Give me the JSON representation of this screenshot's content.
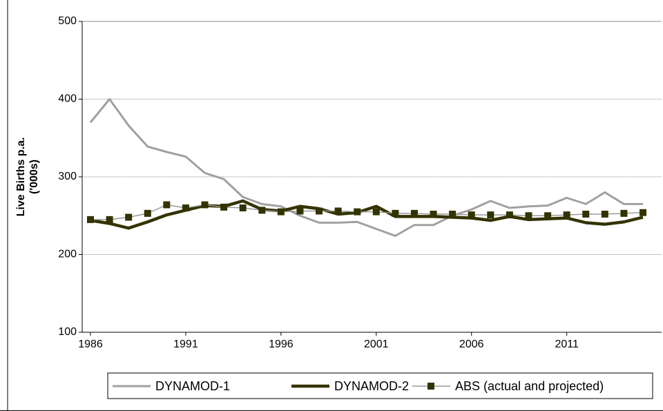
{
  "chart_data": {
    "type": "line",
    "y_label": [
      "Live Births p.a.",
      "('000s)"
    ],
    "x": [
      1986,
      1987,
      1988,
      1989,
      1990,
      1991,
      1992,
      1993,
      1994,
      1995,
      1996,
      1997,
      1998,
      1999,
      2000,
      2001,
      2002,
      2003,
      2004,
      2005,
      2006,
      2007,
      2008,
      2009,
      2010,
      2011,
      2012,
      2013,
      2014,
      2015
    ],
    "xlim": [
      1986,
      2015
    ],
    "xticks": [
      1986,
      1991,
      1996,
      2001,
      2006,
      2011
    ],
    "ylim": [
      100,
      500
    ],
    "yticks": [
      100,
      200,
      300,
      400,
      500
    ],
    "grid": true,
    "legend": "bottom",
    "series": [
      {
        "name": "DYNAMOD-1",
        "color": "#a0a0a0",
        "values": [
          370,
          400,
          366,
          339,
          332,
          326,
          305,
          297,
          274,
          265,
          262,
          250,
          241,
          241,
          242,
          233,
          224,
          238,
          238,
          250,
          258,
          269,
          260,
          262,
          263,
          273,
          265,
          280,
          265,
          265
        ]
      },
      {
        "name": "DYNAMOD-2",
        "color": "#333300",
        "values": [
          244,
          240,
          234,
          242,
          251,
          257,
          263,
          262,
          269,
          258,
          256,
          262,
          259,
          252,
          254,
          262,
          249,
          249,
          249,
          248,
          247,
          244,
          249,
          245,
          246,
          247,
          241,
          239,
          242,
          248
        ]
      },
      {
        "name": "ABS (actual and projected)",
        "color": "#999999",
        "marker_color": "#333300",
        "values": [
          245,
          245,
          248,
          253,
          264,
          260,
          264,
          261,
          260,
          257,
          255,
          256,
          256,
          256,
          255,
          255,
          253,
          253,
          252,
          252,
          251,
          251,
          251,
          250,
          250,
          251,
          252,
          252,
          253,
          254
        ]
      }
    ]
  }
}
